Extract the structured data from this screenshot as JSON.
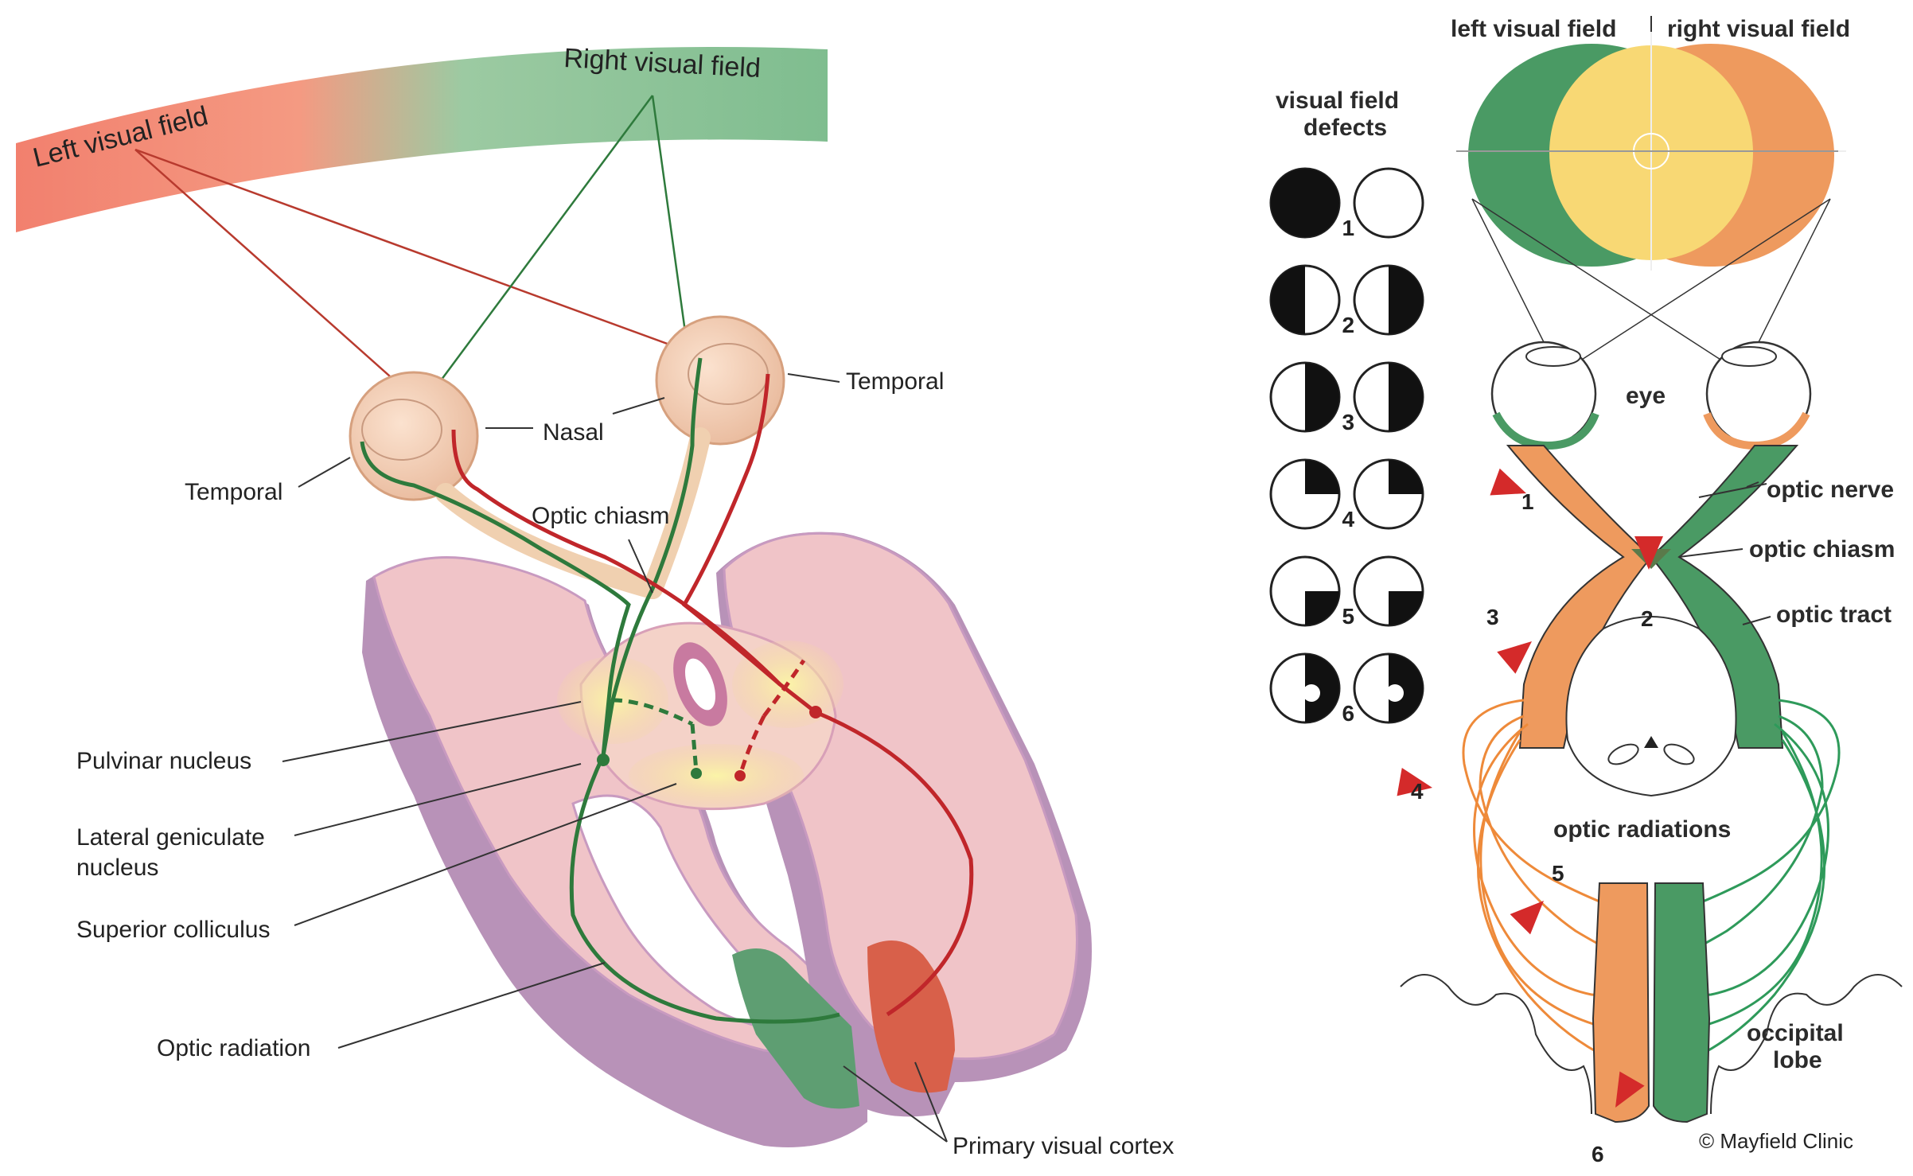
{
  "left_panel": {
    "field_left_label": "Left visual field",
    "field_right_label": "Right visual field",
    "temporal_left_label": "Temporal",
    "nasal_label": "Nasal",
    "temporal_right_label": "Temporal",
    "optic_chiasm_label": "Optic chiasm",
    "pulvinar_label": "Pulvinar nucleus",
    "lgn_label_line1": "Lateral geniculate",
    "lgn_label_line2": "nucleus",
    "superior_colliculus_label": "Superior colliculus",
    "optic_radiation_label": "Optic radiation",
    "primary_visual_cortex_label": "Primary visual cortex",
    "colors": {
      "left_field": "#f08878",
      "right_field": "#8cc49a",
      "left_pathway": "#c0262a",
      "right_pathway": "#2e7a3c",
      "brain": "#e8b4c0",
      "brain_edge": "#b888b0"
    }
  },
  "right_panel": {
    "header_left": "left visual field",
    "header_right": "right visual field",
    "defects_title_line1": "visual field",
    "defects_title_line2": "defects",
    "defect_numbers": [
      "1",
      "2",
      "3",
      "4",
      "5",
      "6"
    ],
    "eye_label": "eye",
    "optic_nerve_label": "optic nerve",
    "optic_chiasm_label": "optic chiasm",
    "optic_tract_label": "optic tract",
    "optic_radiations_label": "optic radiations",
    "occipital_label_line1": "occipital",
    "occipital_label_line2": "lobe",
    "lesion_markers": [
      "1",
      "2",
      "3",
      "4",
      "5",
      "6"
    ],
    "credit": "© Mayfield Clinic",
    "colors": {
      "left_field": "#4a9a64",
      "right_field": "#ee9a5e",
      "overlap": "#f8d874",
      "arrow": "#d42a2a"
    }
  }
}
